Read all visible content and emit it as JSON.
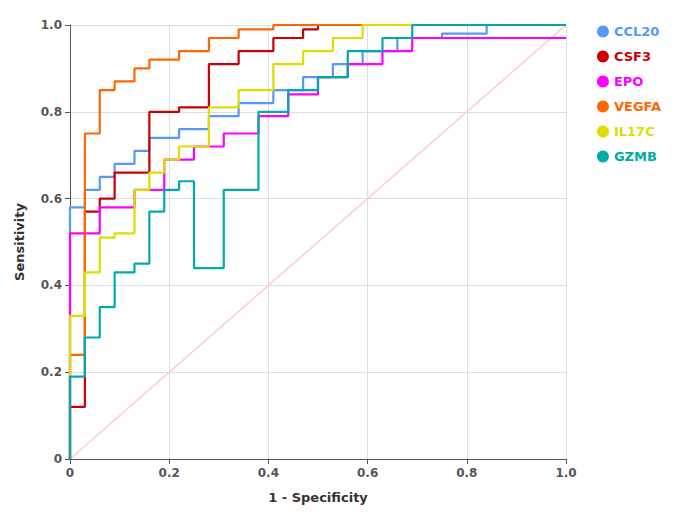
{
  "chart_data": {
    "type": "line",
    "xlabel": "1 - Specificity",
    "ylabel": "Sensitivity",
    "xlim": [
      0,
      1.0
    ],
    "ylim": [
      0,
      1.0
    ],
    "xticks": [
      0,
      0.2,
      0.4,
      0.6,
      0.8,
      {
        "value": 1.0,
        "label": "1.0"
      }
    ],
    "yticks": [
      0,
      0.2,
      0.4,
      0.6,
      0.8,
      {
        "value": 1.0,
        "label": "1.0"
      }
    ],
    "grid": true,
    "legend": "right",
    "marker": "circle",
    "series": [
      {
        "color": "#FFCCCC",
        "x": [
          0,
          1
        ],
        "values": [
          0,
          1
        ]
      },
      {
        "name": "CCL20",
        "color": "#5599FF",
        "x": [
          0.0,
          0.0,
          0.03,
          0.03,
          0.06,
          0.06,
          0.09,
          0.09,
          0.13,
          0.13,
          0.16,
          0.16,
          0.22,
          0.22,
          0.28,
          0.28,
          0.34,
          0.34,
          0.41,
          0.41,
          0.47,
          0.47,
          0.53,
          0.53,
          0.59,
          0.59,
          0.66,
          0.66,
          0.75,
          0.75,
          0.84,
          0.84,
          1.0
        ],
        "values": [
          0.0,
          0.58,
          0.58,
          0.62,
          0.62,
          0.65,
          0.65,
          0.68,
          0.68,
          0.71,
          0.71,
          0.74,
          0.74,
          0.76,
          0.76,
          0.79,
          0.79,
          0.82,
          0.82,
          0.85,
          0.85,
          0.88,
          0.88,
          0.91,
          0.91,
          0.94,
          0.94,
          0.97,
          0.97,
          0.98,
          0.98,
          1.0,
          1.0
        ]
      },
      {
        "name": "CSF3",
        "color": "#CC0000",
        "x": [
          0.0,
          0.0,
          0.03,
          0.03,
          0.06,
          0.06,
          0.09,
          0.09,
          0.16,
          0.16,
          0.22,
          0.22,
          0.28,
          0.28,
          0.34,
          0.34,
          0.41,
          0.41,
          0.47,
          0.47,
          0.5,
          0.5,
          0.56,
          0.56,
          0.63,
          0.63,
          0.66,
          0.66,
          1.0
        ],
        "values": [
          0.0,
          0.12,
          0.12,
          0.57,
          0.57,
          0.6,
          0.6,
          0.66,
          0.66,
          0.8,
          0.8,
          0.81,
          0.81,
          0.91,
          0.91,
          0.94,
          0.94,
          0.97,
          0.97,
          0.99,
          0.99,
          1.0,
          1.0,
          1.0,
          1.0,
          1.0,
          1.0,
          1.0,
          1.0
        ]
      },
      {
        "name": "EPO",
        "color": "#FF00FF",
        "x": [
          0.0,
          0.0,
          0.06,
          0.06,
          0.13,
          0.13,
          0.19,
          0.19,
          0.25,
          0.25,
          0.31,
          0.31,
          0.38,
          0.38,
          0.44,
          0.44,
          0.5,
          0.5,
          0.56,
          0.56,
          0.63,
          0.63,
          0.69,
          0.69,
          1.0
        ],
        "values": [
          0.0,
          0.52,
          0.52,
          0.58,
          0.58,
          0.62,
          0.62,
          0.69,
          0.69,
          0.72,
          0.72,
          0.75,
          0.75,
          0.79,
          0.79,
          0.84,
          0.84,
          0.88,
          0.88,
          0.91,
          0.91,
          0.94,
          0.94,
          0.97,
          0.97
        ]
      },
      {
        "name": "VEGFA",
        "color": "#FF6600",
        "x": [
          0.0,
          0.0,
          0.03,
          0.03,
          0.06,
          0.06,
          0.09,
          0.09,
          0.13,
          0.13,
          0.16,
          0.16,
          0.22,
          0.22,
          0.28,
          0.28,
          0.34,
          0.34,
          0.41,
          0.41,
          0.47,
          0.47,
          0.5,
          0.5,
          0.56,
          0.56,
          0.63,
          0.63,
          1.0
        ],
        "values": [
          0.0,
          0.24,
          0.24,
          0.75,
          0.75,
          0.85,
          0.85,
          0.87,
          0.87,
          0.9,
          0.9,
          0.92,
          0.92,
          0.94,
          0.94,
          0.97,
          0.97,
          0.99,
          0.99,
          1.0,
          1.0,
          1.0,
          1.0,
          1.0,
          1.0,
          1.0,
          1.0,
          1.0,
          1.0
        ]
      },
      {
        "name": "IL17C",
        "color": "#DDDD00",
        "x": [
          0.0,
          0.0,
          0.03,
          0.03,
          0.06,
          0.06,
          0.09,
          0.09,
          0.13,
          0.13,
          0.16,
          0.16,
          0.19,
          0.19,
          0.22,
          0.22,
          0.28,
          0.28,
          0.34,
          0.34,
          0.41,
          0.41,
          0.47,
          0.47,
          0.53,
          0.53,
          0.59,
          0.59,
          0.63,
          0.63,
          0.69,
          0.69,
          0.78,
          0.78,
          1.0
        ],
        "values": [
          0.0,
          0.33,
          0.33,
          0.43,
          0.43,
          0.51,
          0.51,
          0.52,
          0.52,
          0.62,
          0.62,
          0.66,
          0.66,
          0.69,
          0.69,
          0.72,
          0.72,
          0.81,
          0.81,
          0.85,
          0.85,
          0.91,
          0.91,
          0.94,
          0.94,
          0.97,
          0.97,
          1.0,
          1.0,
          1.0,
          1.0,
          1.0,
          1.0,
          1.0,
          1.0
        ]
      },
      {
        "name": "GZMB",
        "color": "#00AAAA",
        "x": [
          0.0,
          0.0,
          0.03,
          0.03,
          0.06,
          0.06,
          0.09,
          0.09,
          0.13,
          0.13,
          0.16,
          0.16,
          0.19,
          0.19,
          0.22,
          0.22,
          0.25,
          0.25,
          0.31,
          0.31,
          0.38,
          0.38,
          0.44,
          0.44,
          0.5,
          0.5,
          0.56,
          0.56,
          0.63,
          0.63,
          0.69,
          0.69,
          0.75,
          0.75,
          1.0
        ],
        "values": [
          0.0,
          0.19,
          0.19,
          0.28,
          0.28,
          0.35,
          0.35,
          0.43,
          0.43,
          0.45,
          0.45,
          0.57,
          0.57,
          0.62,
          0.62,
          0.64,
          0.64,
          0.44,
          0.44,
          0.62,
          0.62,
          0.8,
          0.8,
          0.85,
          0.85,
          0.88,
          0.88,
          0.94,
          0.94,
          0.97,
          0.97,
          1.0,
          1.0,
          1.0,
          1.0
        ]
      }
    ]
  }
}
